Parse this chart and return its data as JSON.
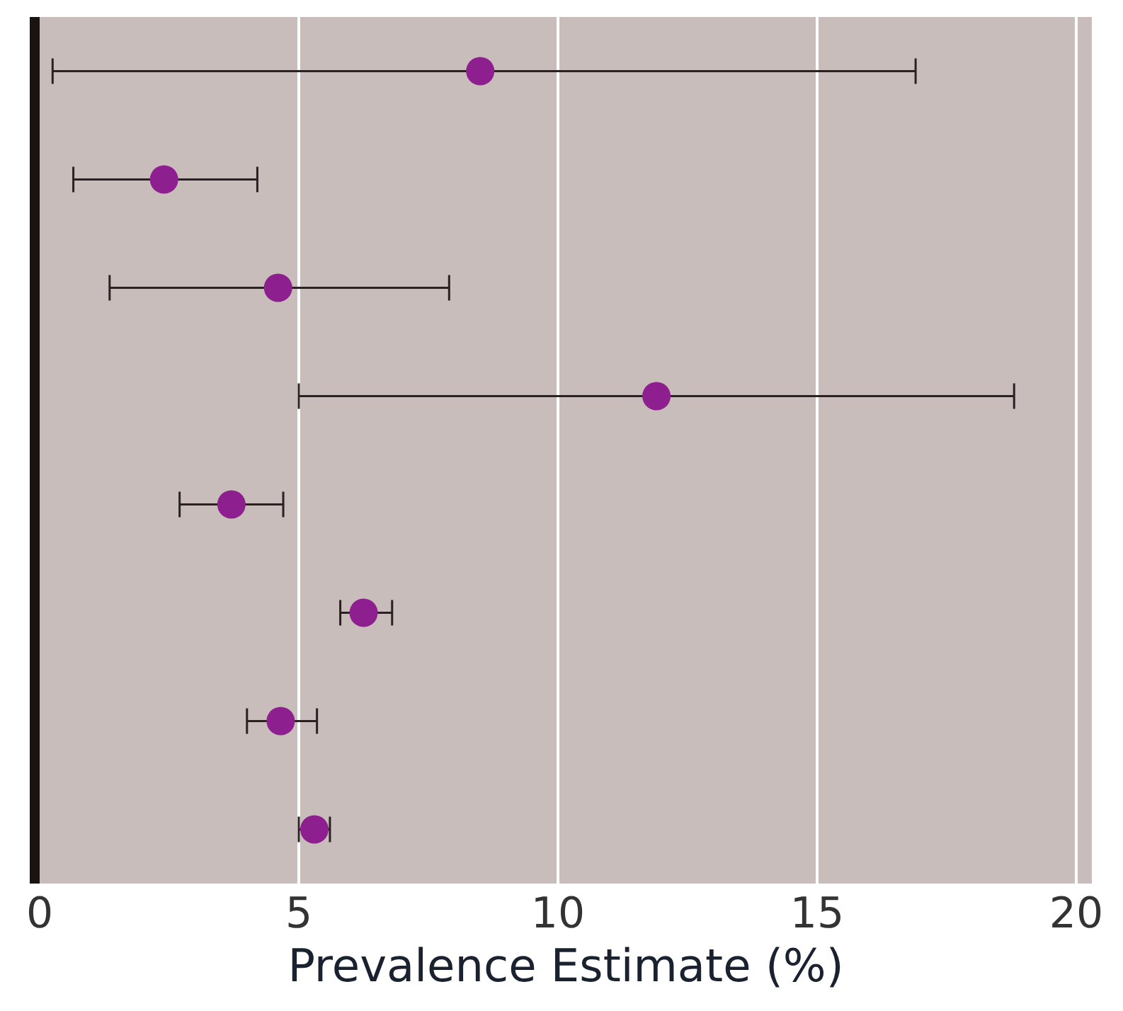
{
  "chart_data": {
    "type": "scatter",
    "orientation": "horizontal",
    "xlabel": "Prevalence Estimate (%)",
    "categories": [
      null,
      null,
      null,
      null,
      null,
      null,
      null,
      null
    ],
    "values": [
      8.5,
      2.4,
      4.6,
      11.9,
      3.7,
      6.25,
      4.65,
      5.3
    ],
    "errors": [
      [
        0.25,
        16.9
      ],
      [
        0.65,
        4.2
      ],
      [
        1.35,
        7.9
      ],
      [
        5.0,
        18.8
      ],
      [
        2.7,
        4.7
      ],
      [
        5.8,
        6.8
      ],
      [
        4.0,
        5.35
      ],
      [
        5.0,
        5.6
      ]
    ],
    "color": "#8e1f8e",
    "marker": "circle",
    "grid": "x",
    "tick_labels": "x",
    "xlim": [
      0,
      20.3
    ],
    "xticks": [
      0,
      5,
      10,
      15,
      20
    ]
  }
}
